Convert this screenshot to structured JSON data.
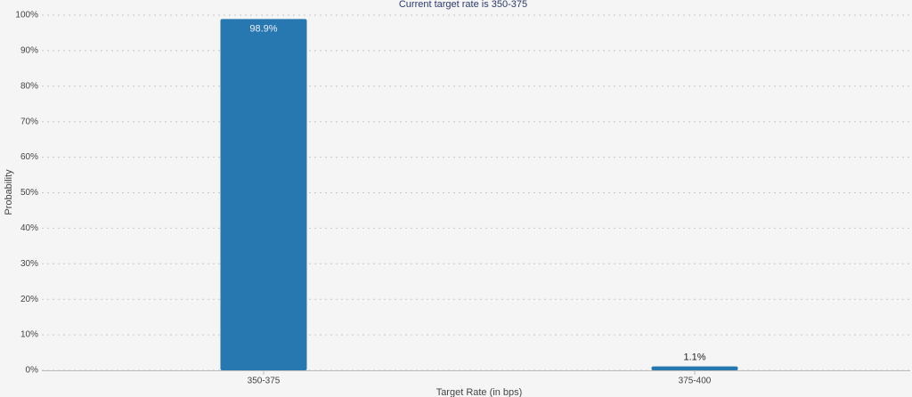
{
  "chart_data": {
    "type": "bar",
    "title": "Current target rate is 350-375",
    "categories": [
      "350-375",
      "375-400"
    ],
    "values": [
      98.9,
      1.1
    ],
    "value_labels": [
      "98.9%",
      "1.1%"
    ],
    "color": "#2777b0",
    "ylim": [
      0,
      100
    ],
    "yticks": [
      {
        "value": 0,
        "label": "0%"
      },
      {
        "value": 10,
        "label": "10%"
      },
      {
        "value": 20,
        "label": "20%"
      },
      {
        "value": 30,
        "label": "30%"
      },
      {
        "value": 40,
        "label": "40%"
      },
      {
        "value": 50,
        "label": "50%"
      },
      {
        "value": 60,
        "label": "60%"
      },
      {
        "value": 70,
        "label": "70%"
      },
      {
        "value": 80,
        "label": "80%"
      },
      {
        "value": 90,
        "label": "90%"
      },
      {
        "value": 100,
        "label": "100%"
      }
    ],
    "grid": true,
    "x_label": "Target Rate (in bps)",
    "y_label": "Probability"
  }
}
